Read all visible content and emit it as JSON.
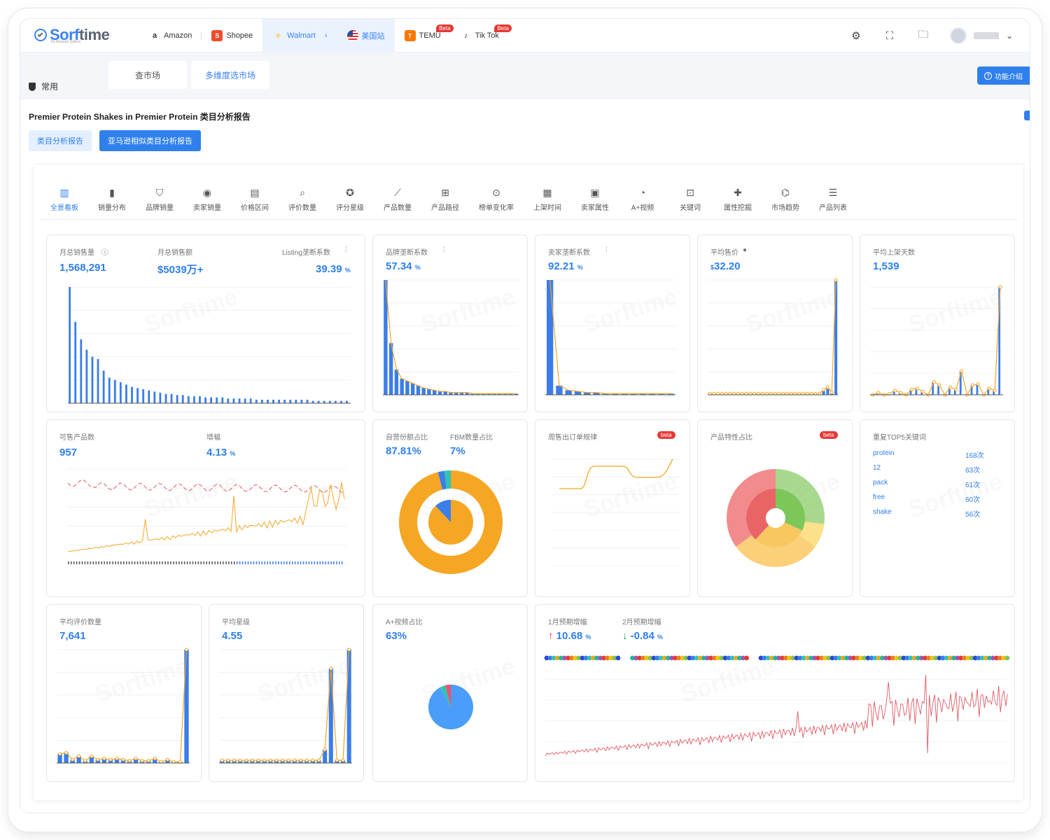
{
  "brand": {
    "name_a": "Sorf",
    "name_b": "time",
    "tagline": "for Amazon Sellers"
  },
  "platform_tabs": [
    {
      "label": "Amazon",
      "icon": "amazon-icon",
      "beta": ""
    },
    {
      "label": "Shopee",
      "icon": "shopee-icon",
      "beta": ""
    },
    {
      "label": "Walmart",
      "icon": "walmart-icon",
      "beta": ""
    },
    {
      "label": "美国站",
      "icon": "us-flag-icon",
      "beta": ""
    },
    {
      "label": "TEMU",
      "icon": "temu-icon",
      "beta": "Beta"
    },
    {
      "label": "Tik Tok",
      "icon": "tiktok-icon",
      "beta": "Beta"
    }
  ],
  "side": {
    "common": "常用"
  },
  "subtabs": [
    "查市场",
    "多维度选市场"
  ],
  "intro": "功能介绍",
  "report": {
    "title": "Premier Protein Shakes in Premier Protein 类目分析报告",
    "btn_a": "类目分析报告",
    "btn_b": "亚马逊相似类目分析报告"
  },
  "tools": [
    "全景看板",
    "销量分布",
    "品牌销量",
    "卖家销量",
    "价格区间",
    "评价数量",
    "评分星级",
    "产品数量",
    "产品路径",
    "榜单变化率",
    "上架时间",
    "卖家属性",
    "A+视频",
    "关键词",
    "属性挖掘",
    "市场趋势",
    "产品列表"
  ],
  "cards": {
    "sales": {
      "l1": "月总销售量",
      "v1": "1,568,291",
      "l2": "月总销售额",
      "v2": "$5039万+",
      "l3": "Listing垄断系数",
      "v3": "39.39",
      "u3": "%"
    },
    "brand": {
      "l": "品牌垄断系数",
      "v": "57.34",
      "u": "%"
    },
    "seller": {
      "l": "卖家垄断系数",
      "v": "92.21",
      "u": "%"
    },
    "price": {
      "l": "平均售价",
      "cur": "$",
      "v": "32.20"
    },
    "days": {
      "l": "平均上架天数",
      "v": "1,539"
    },
    "products": {
      "l1": "可售产品数",
      "v1": "957",
      "l2": "增幅",
      "v2": "4.13",
      "u2": "%"
    },
    "share": {
      "l1": "自营份额占比",
      "v1": "87.81%",
      "l2": "FBM数量占比",
      "v2": "7%"
    },
    "weekly": {
      "l": "周售出订单规律",
      "badge": "beta"
    },
    "attr": {
      "l": "产品特性占比",
      "badge": "beta"
    },
    "keywords": {
      "l": "重复TOP5关键词",
      "items": [
        {
          "word": "protein",
          "count": "168次"
        },
        {
          "word": "12",
          "count": "63次"
        },
        {
          "word": "pack",
          "count": "61次"
        },
        {
          "word": "free",
          "count": "60次"
        },
        {
          "word": "shake",
          "count": "56次"
        }
      ]
    },
    "reviews": {
      "l": "平均评价数量",
      "v": "7,641"
    },
    "rating": {
      "l": "平均星级",
      "v": "4.55"
    },
    "aplus": {
      "l": "A+视频占比",
      "v": "63%"
    },
    "forecast": {
      "l1": "1月预期增幅",
      "v1": "10.68",
      "u1": "%",
      "l2": "2月预期增幅",
      "v2": "-0.84",
      "u2": "%"
    }
  },
  "colors": {
    "accent": "#2f80ed",
    "orange": "#f5a623",
    "red": "#f0506e",
    "bar": "#3b7de9"
  },
  "chart_data": [
    {
      "type": "bar",
      "name": "sales-distribution",
      "values": [
        100,
        70,
        55,
        46,
        40,
        38,
        28,
        22,
        20,
        18,
        16,
        14,
        13,
        12,
        11,
        10,
        9,
        8,
        8,
        7,
        7,
        6,
        6,
        6,
        5,
        5,
        5,
        5,
        4,
        4,
        4,
        4,
        4,
        3,
        3,
        3,
        3,
        3,
        3,
        3,
        3,
        3,
        3,
        2,
        2,
        2,
        2,
        2,
        2,
        2
      ]
    },
    {
      "type": "bar",
      "name": "brand-share",
      "values": [
        100,
        45,
        22,
        14,
        12,
        10,
        8,
        6,
        5,
        4,
        3,
        3,
        2,
        2,
        2,
        2,
        1,
        1,
        1,
        1,
        1,
        1,
        1,
        1,
        1
      ]
    },
    {
      "type": "bar",
      "name": "seller-share",
      "values": [
        100,
        8,
        4,
        3,
        2,
        2,
        1,
        1,
        1,
        1,
        1,
        1,
        1,
        1
      ]
    },
    {
      "type": "bar",
      "name": "price-distribution",
      "values": [
        1,
        1,
        1,
        1,
        1,
        1,
        1,
        1,
        1,
        1,
        1,
        1,
        1,
        1,
        1,
        1,
        1,
        1,
        1,
        1,
        1,
        1,
        1,
        1,
        1,
        1,
        1,
        1,
        4,
        6,
        2,
        92
      ]
    },
    {
      "type": "bar",
      "name": "listing-days",
      "values": [
        0,
        2,
        0,
        1,
        4,
        2,
        0,
        5,
        6,
        3,
        0,
        12,
        9,
        0,
        7,
        5,
        22,
        0,
        9,
        10,
        0,
        6,
        4,
        100
      ]
    },
    {
      "type": "donut",
      "name": "fulfillment-share",
      "values": [
        96,
        2,
        2
      ]
    },
    {
      "type": "sunburst",
      "name": "attributes",
      "values": [
        32,
        30,
        38
      ]
    },
    {
      "type": "bar",
      "name": "reviews-distribution",
      "values": [
        8,
        9,
        3,
        6,
        2,
        6,
        3,
        4,
        3,
        4,
        3,
        2,
        4,
        2,
        2,
        4,
        1,
        3,
        1,
        1,
        100
      ]
    },
    {
      "type": "bar",
      "name": "rating-distribution",
      "values": [
        1,
        1,
        1,
        1,
        1,
        1,
        1,
        1,
        1,
        1,
        1,
        1,
        1,
        1,
        1,
        1,
        1,
        5,
        35,
        1,
        1,
        42
      ]
    },
    {
      "type": "donut",
      "name": "aplus-share",
      "values": [
        92,
        4,
        4
      ]
    }
  ]
}
